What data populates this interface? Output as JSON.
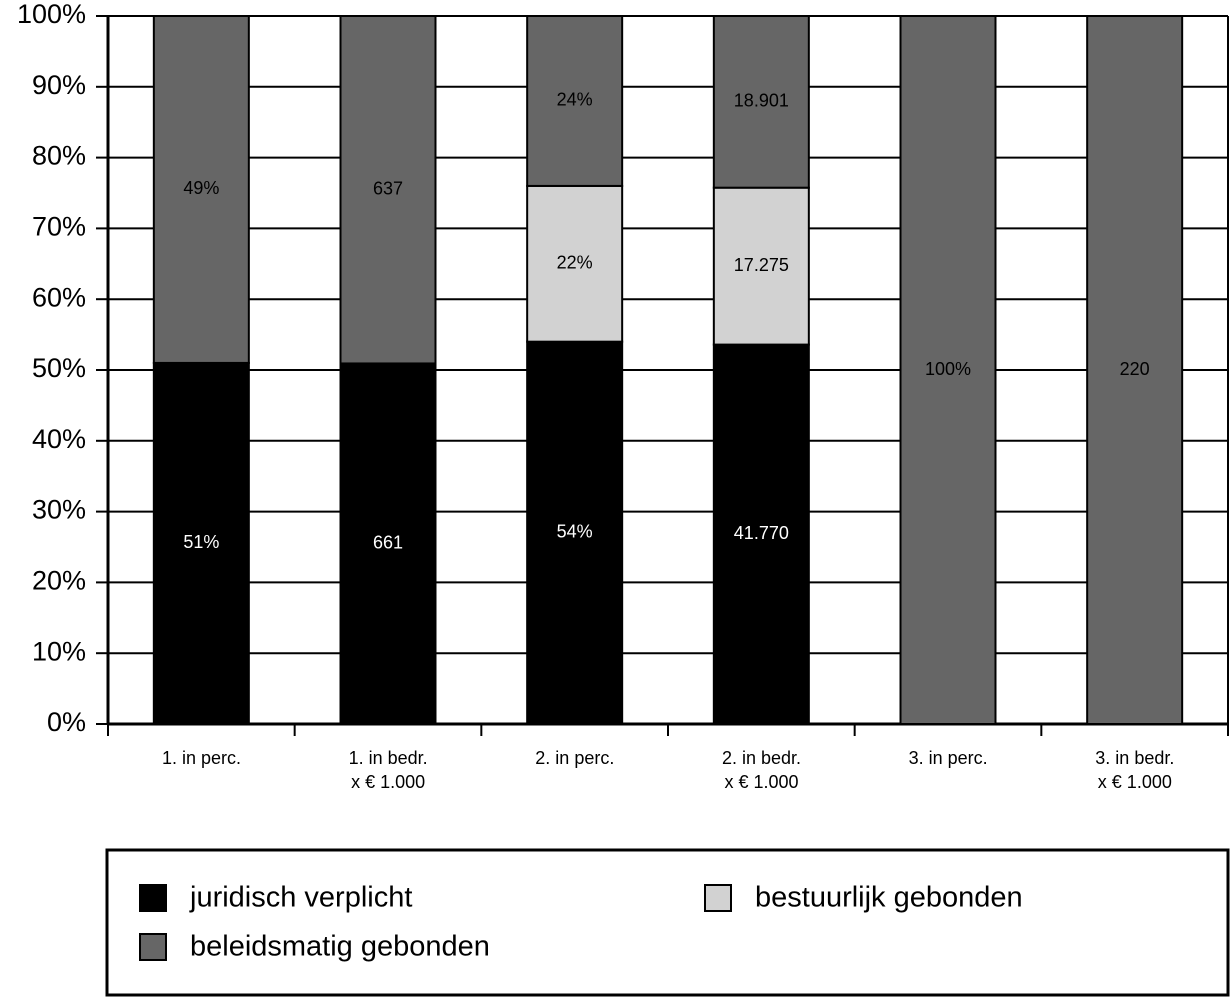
{
  "chart_data": {
    "type": "bar",
    "stack": "percent",
    "categories": [
      "1. in perc.",
      "1. in bedr.\nx € 1.000",
      "2. in perc.",
      "2. in bedr.\nx € 1.000",
      "3. in perc.",
      "3. in bedr.\nx € 1.000"
    ],
    "series": [
      {
        "name": "juridisch verplicht",
        "color": "#000000",
        "values": [
          51,
          661,
          54,
          41770,
          null,
          null
        ],
        "value_labels": [
          "51%",
          "661",
          "54%",
          "41.770",
          null,
          null
        ]
      },
      {
        "name": "bestuurlijk gebonden",
        "color": "#d2d2d2",
        "values": [
          null,
          null,
          22,
          17275,
          null,
          null
        ],
        "value_labels": [
          null,
          null,
          "22%",
          "17.275",
          null,
          null
        ]
      },
      {
        "name": "beleidsmatig gebonden",
        "color": "#666666",
        "values": [
          49,
          637,
          24,
          18901,
          100,
          220
        ],
        "value_labels": [
          "49%",
          "637",
          "24%",
          "18.901",
          "100%",
          "220"
        ]
      }
    ],
    "ylim": [
      0,
      100
    ],
    "yticks": [
      {
        "value": 0,
        "label": "0%"
      },
      {
        "value": 10,
        "label": "10%"
      },
      {
        "value": 20,
        "label": "20%"
      },
      {
        "value": 30,
        "label": "30%"
      },
      {
        "value": 40,
        "label": "40%"
      },
      {
        "value": 50,
        "label": "50%"
      },
      {
        "value": 60,
        "label": "60%"
      },
      {
        "value": 70,
        "label": "70%"
      },
      {
        "value": 80,
        "label": "80%"
      },
      {
        "value": 90,
        "label": "90%"
      },
      {
        "value": 100,
        "label": "100%"
      }
    ],
    "grid": true
  }
}
